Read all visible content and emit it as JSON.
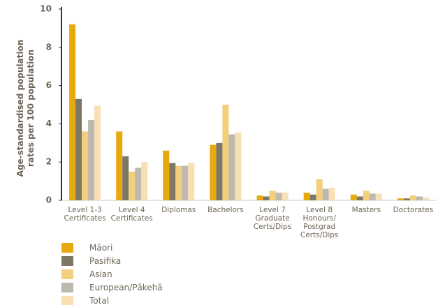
{
  "chart_data": {
    "type": "bar",
    "ylabel": "Age-standardised population rates per 100 population",
    "categories": [
      "Level 1-3 Certificates",
      "Level 4 Certificates",
      "Diplomas",
      "Bachelors",
      "Level 7 Graduate Certs/Dips",
      "Level 8 Honours/ Postgrad Certs/Dips",
      "Masters",
      "Doctorates"
    ],
    "series": [
      {
        "name": "Māori",
        "color": "#e8a90f",
        "values": [
          9.2,
          3.6,
          2.6,
          2.9,
          0.25,
          0.4,
          0.3,
          0.1
        ]
      },
      {
        "name": "Pasifika",
        "color": "#7d7865",
        "values": [
          5.3,
          2.3,
          1.95,
          3.0,
          0.2,
          0.3,
          0.2,
          0.1
        ]
      },
      {
        "name": "Asian",
        "color": "#f3cf7c",
        "values": [
          3.6,
          1.5,
          1.8,
          5.0,
          0.5,
          1.1,
          0.5,
          0.25
        ]
      },
      {
        "name": "European/Pākehā",
        "color": "#bdb8b0",
        "values": [
          4.2,
          1.7,
          1.8,
          3.45,
          0.4,
          0.6,
          0.35,
          0.2
        ]
      },
      {
        "name": "Total",
        "color": "#f8e0b4",
        "values": [
          4.95,
          2.0,
          1.95,
          3.55,
          0.4,
          0.65,
          0.35,
          0.15
        ]
      }
    ],
    "ylim": [
      0,
      10
    ],
    "yticks": [
      0,
      2,
      4,
      6,
      8,
      10
    ],
    "grid": false,
    "legend": "bottom-left"
  }
}
